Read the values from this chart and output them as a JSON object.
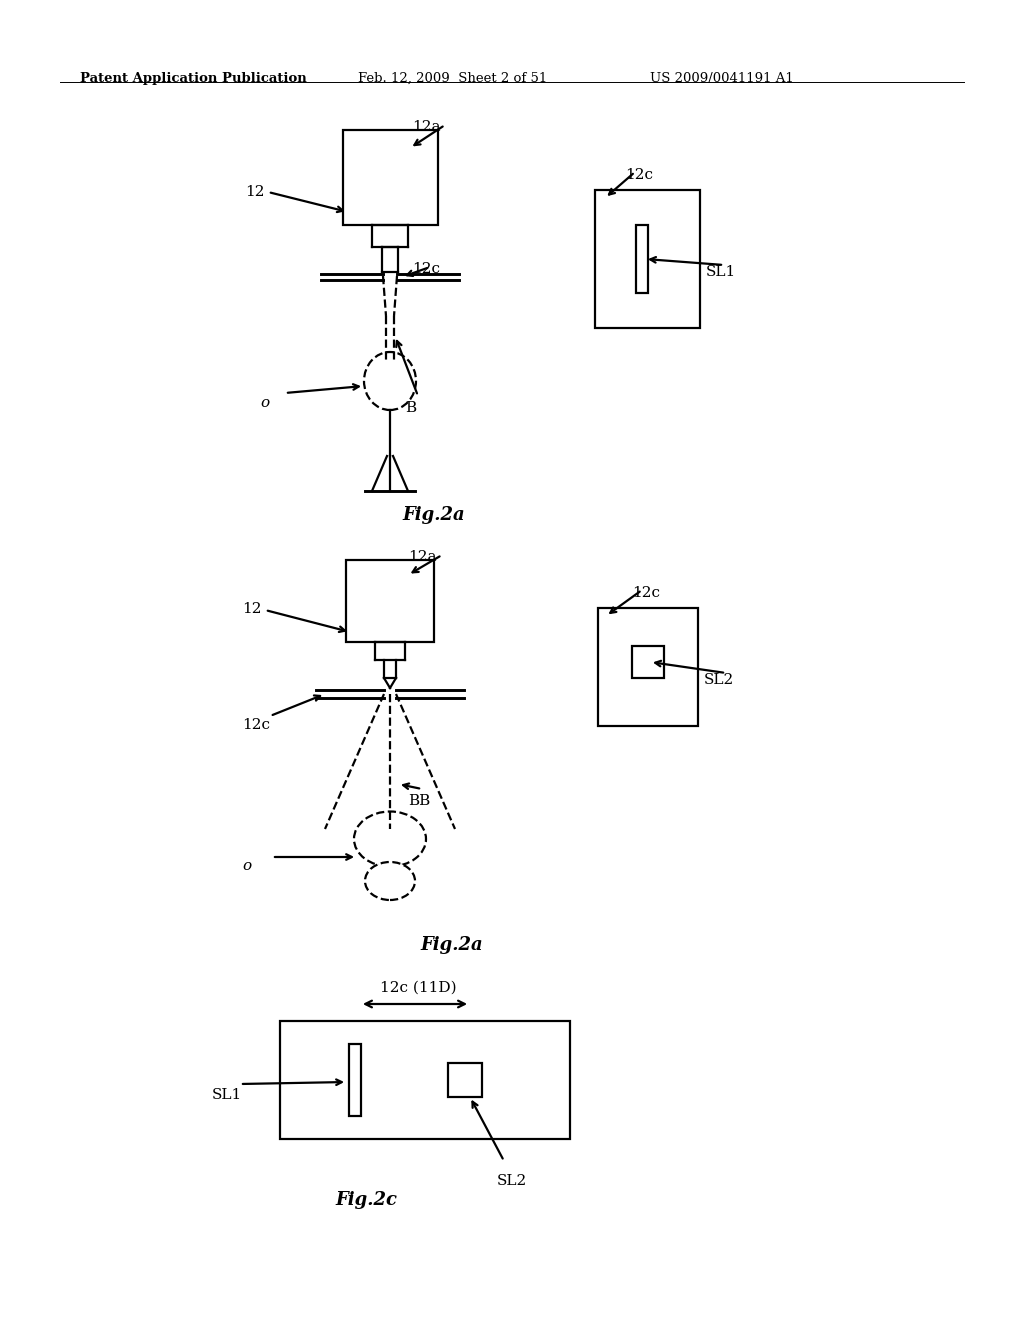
{
  "bg_color": "#ffffff",
  "header_text": "Patent Application Publication",
  "header_date": "Feb. 12, 2009  Sheet 2 of 51",
  "header_patent": "US 2009/0041191 A1",
  "fig2a_top_caption": "Fig.2a",
  "fig2a_bot_caption": "Fig.2a",
  "fig2c_caption": "Fig.2c",
  "lw": 1.6,
  "fs_label": 11,
  "fs_caption": 13,
  "fs_header": 9.5,
  "black": "#000000"
}
